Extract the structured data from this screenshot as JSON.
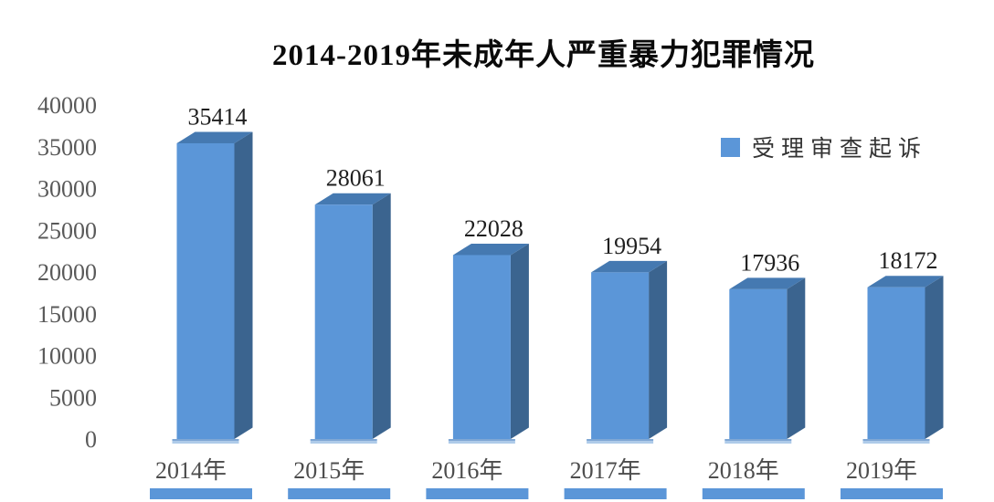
{
  "page": {
    "title": "2014-2019年未成年人严重暴力犯罪情况"
  },
  "chart_data": {
    "type": "bar",
    "style": "3d-column",
    "title": "2014-2019年未成年人严重暴力犯罪情况",
    "categories": [
      "2014年",
      "2015年",
      "2016年",
      "2017年",
      "2018年",
      "2019年"
    ],
    "series": [
      {
        "name": "受理审查起诉",
        "values": [
          35414,
          28061,
          22028,
          19954,
          17936,
          18172
        ]
      }
    ],
    "value_labels": [
      35414,
      28061,
      22028,
      19954,
      17936,
      18172
    ],
    "xlabel": "",
    "ylabel": "",
    "ylim": [
      0,
      40000
    ],
    "ytick_step": 5000,
    "yticks": [
      0,
      5000,
      10000,
      15000,
      20000,
      25000,
      30000,
      35000,
      40000
    ],
    "grid": false,
    "legend_position": "upper-right",
    "colors": {
      "bar_front": "#5B96D8",
      "bar_top": "#4579B1",
      "bar_side": "#3B648F",
      "base_strip_dark": "#7FA7D4",
      "base_strip_light": "#AECBE9",
      "axis_label": "#595959",
      "category_label": "#4d4d4d",
      "value_label": "#1f1f1f",
      "title": "#0a0a0a"
    }
  },
  "legend": {
    "label": "受理审查起诉",
    "swatch_color": "#5B96D8"
  }
}
